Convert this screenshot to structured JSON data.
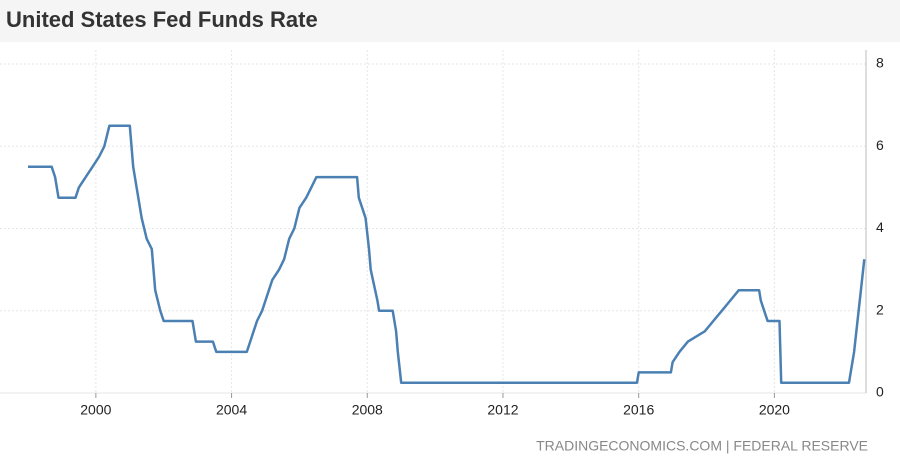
{
  "chart_data": {
    "type": "line",
    "title": "United States Fed Funds Rate",
    "source": "TRADINGECONOMICS.COM | FEDERAL RESERVE",
    "color": "#4a80b2",
    "grid": true,
    "xlim": [
      1998,
      2022.7
    ],
    "xticks": [
      2000,
      2004,
      2008,
      2012,
      2016,
      2020
    ],
    "ylim": [
      0,
      8
    ],
    "yticks": [
      0,
      2,
      4,
      6,
      8
    ],
    "x": [
      1998.0,
      1998.7,
      1998.8,
      1998.9,
      1999.4,
      1999.5,
      1999.7,
      1999.9,
      2000.1,
      2000.25,
      2000.4,
      2001.0,
      2001.1,
      2001.2,
      2001.35,
      2001.5,
      2001.65,
      2001.75,
      2001.9,
      2002.0,
      2002.85,
      2002.95,
      2003.45,
      2003.55,
      2004.45,
      2004.55,
      2004.65,
      2004.75,
      2004.9,
      2005.0,
      2005.2,
      2005.4,
      2005.55,
      2005.7,
      2005.85,
      2006.0,
      2006.2,
      2006.35,
      2006.5,
      2007.7,
      2007.75,
      2007.85,
      2007.95,
      2008.05,
      2008.1,
      2008.3,
      2008.35,
      2008.75,
      2008.85,
      2008.9,
      2009.0,
      2015.95,
      2016.0,
      2016.95,
      2017.0,
      2017.2,
      2017.45,
      2017.95,
      2018.2,
      2018.45,
      2018.7,
      2018.95,
      2019.55,
      2019.6,
      2019.7,
      2019.8,
      2020.15,
      2020.2,
      2022.2,
      2022.25,
      2022.35,
      2022.45,
      2022.55,
      2022.65
    ],
    "values": [
      5.5,
      5.5,
      5.25,
      4.75,
      4.75,
      5.0,
      5.25,
      5.5,
      5.75,
      6.0,
      6.5,
      6.5,
      5.5,
      5.0,
      4.25,
      3.75,
      3.5,
      2.5,
      2.0,
      1.75,
      1.75,
      1.25,
      1.25,
      1.0,
      1.0,
      1.25,
      1.5,
      1.75,
      2.0,
      2.25,
      2.75,
      3.0,
      3.25,
      3.75,
      4.0,
      4.5,
      4.75,
      5.0,
      5.25,
      5.25,
      4.75,
      4.5,
      4.25,
      3.5,
      3.0,
      2.25,
      2.0,
      2.0,
      1.5,
      1.0,
      0.25,
      0.25,
      0.5,
      0.5,
      0.75,
      1.0,
      1.25,
      1.5,
      1.75,
      2.0,
      2.25,
      2.5,
      2.5,
      2.25,
      2.0,
      1.75,
      1.75,
      0.25,
      0.25,
      0.5,
      1.0,
      1.75,
      2.5,
      3.25
    ]
  }
}
